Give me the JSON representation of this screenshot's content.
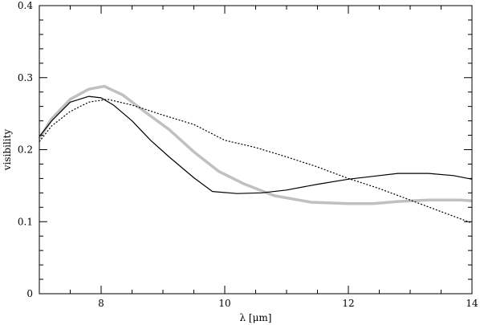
{
  "chart_data": {
    "type": "line",
    "title": "",
    "xlabel": "λ [μm]",
    "ylabel": "visibility",
    "xlim": [
      7,
      14
    ],
    "ylim": [
      0,
      0.4
    ],
    "grid": false,
    "x_ticks": [
      8,
      10,
      12,
      14
    ],
    "x_tick_labels": [
      "8",
      "10",
      "12",
      "14"
    ],
    "y_ticks": [
      0,
      0.1,
      0.2,
      0.3,
      0.4
    ],
    "y_tick_labels": [
      "0",
      "0.1",
      "0.2",
      "0.3",
      "0.4"
    ],
    "series": [
      {
        "style": "thick-gray",
        "color": "#c0c0c0",
        "x": [
          7.0,
          7.2,
          7.5,
          7.8,
          8.05,
          8.35,
          8.7,
          9.1,
          9.5,
          9.9,
          10.3,
          10.8,
          11.4,
          12.0,
          12.4,
          12.8,
          13.3,
          13.8,
          14.0
        ],
        "values": [
          0.215,
          0.243,
          0.27,
          0.284,
          0.288,
          0.276,
          0.253,
          0.228,
          0.197,
          0.17,
          0.153,
          0.136,
          0.127,
          0.125,
          0.125,
          0.128,
          0.13,
          0.13,
          0.129
        ]
      },
      {
        "style": "solid-black",
        "color": "#000000",
        "x": [
          7.0,
          7.2,
          7.5,
          7.8,
          8.0,
          8.2,
          8.5,
          8.8,
          9.1,
          9.5,
          9.8,
          10.2,
          10.6,
          11.0,
          11.5,
          12.0,
          12.5,
          12.8,
          13.3,
          13.7,
          14.0
        ],
        "values": [
          0.218,
          0.24,
          0.266,
          0.274,
          0.272,
          0.262,
          0.24,
          0.213,
          0.19,
          0.161,
          0.142,
          0.139,
          0.14,
          0.144,
          0.152,
          0.159,
          0.164,
          0.167,
          0.167,
          0.164,
          0.159
        ]
      },
      {
        "style": "dotted-black",
        "color": "#000000",
        "x": [
          7.0,
          7.2,
          7.5,
          7.8,
          8.1,
          8.5,
          9.0,
          9.5,
          10.0,
          10.5,
          11.0,
          11.5,
          12.0,
          12.5,
          13.0,
          13.5,
          14.0
        ],
        "values": [
          0.211,
          0.233,
          0.253,
          0.266,
          0.27,
          0.262,
          0.248,
          0.235,
          0.213,
          0.203,
          0.19,
          0.176,
          0.16,
          0.146,
          0.13,
          0.114,
          0.098
        ]
      }
    ]
  }
}
